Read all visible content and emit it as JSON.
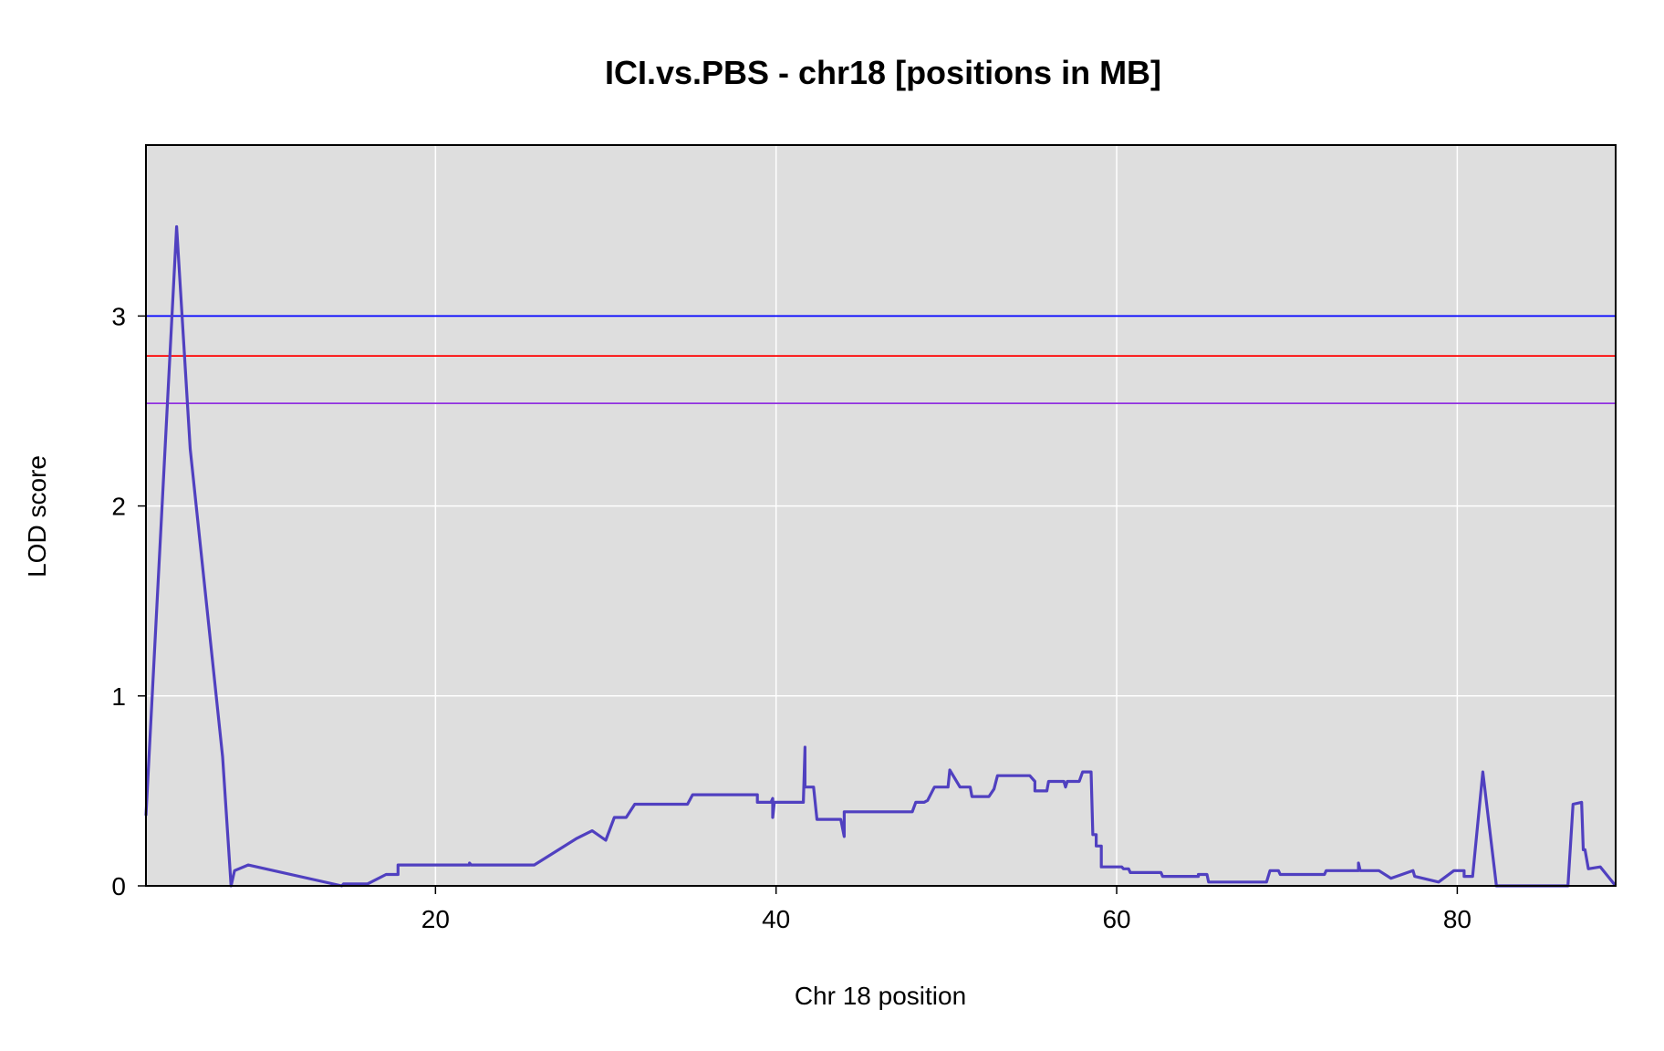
{
  "chart_data": {
    "type": "line",
    "title": "ICI.vs.PBS - chr18 [positions in MB]",
    "xlabel": "Chr 18 position",
    "ylabel": "LOD score",
    "xlim": [
      3,
      89.3
    ],
    "ylim": [
      0,
      3.9
    ],
    "x_ticks": [
      20,
      40,
      60,
      80
    ],
    "y_ticks": [
      0,
      1,
      2,
      3
    ],
    "grid": true,
    "legend": "none",
    "colors": {
      "panel_background": "#dedede",
      "grid": "#ffffff",
      "frame": "#000000",
      "series": "#5040c0"
    },
    "thresholds": [
      {
        "value": 3.0,
        "color": "#0000ff"
      },
      {
        "value": 2.79,
        "color": "#ff0000"
      },
      {
        "value": 2.54,
        "color": "#9030e0"
      }
    ],
    "series": [
      {
        "points": [
          [
            3.0,
            0.37
          ],
          [
            4.8,
            3.47
          ],
          [
            5.6,
            2.3
          ],
          [
            7.5,
            0.68
          ],
          [
            8.0,
            0.0
          ],
          [
            8.2,
            0.08
          ],
          [
            9.0,
            0.11
          ],
          [
            14.5,
            0.0
          ],
          [
            14.6,
            0.01
          ],
          [
            16.0,
            0.01
          ],
          [
            17.1,
            0.06
          ],
          [
            17.8,
            0.06
          ],
          [
            17.8,
            0.11
          ],
          [
            22.0,
            0.11
          ],
          [
            22.0,
            0.12
          ],
          [
            22.1,
            0.11
          ],
          [
            25.8,
            0.11
          ],
          [
            28.3,
            0.25
          ],
          [
            29.2,
            0.29
          ],
          [
            30.0,
            0.24
          ],
          [
            30.5,
            0.36
          ],
          [
            31.2,
            0.36
          ],
          [
            31.7,
            0.43
          ],
          [
            34.8,
            0.43
          ],
          [
            35.1,
            0.48
          ],
          [
            38.9,
            0.48
          ],
          [
            38.9,
            0.44
          ],
          [
            39.7,
            0.44
          ],
          [
            39.8,
            0.46
          ],
          [
            39.8,
            0.36
          ],
          [
            39.9,
            0.44
          ],
          [
            41.6,
            0.44
          ],
          [
            41.7,
            0.73
          ],
          [
            41.7,
            0.52
          ],
          [
            42.2,
            0.52
          ],
          [
            42.4,
            0.35
          ],
          [
            43.8,
            0.35
          ],
          [
            44.0,
            0.26
          ],
          [
            44.0,
            0.39
          ],
          [
            48.0,
            0.39
          ],
          [
            48.2,
            0.44
          ],
          [
            48.7,
            0.44
          ],
          [
            48.9,
            0.45
          ],
          [
            49.3,
            0.52
          ],
          [
            50.1,
            0.52
          ],
          [
            50.2,
            0.61
          ],
          [
            50.8,
            0.52
          ],
          [
            51.4,
            0.52
          ],
          [
            51.5,
            0.47
          ],
          [
            52.5,
            0.47
          ],
          [
            52.8,
            0.51
          ],
          [
            53.0,
            0.58
          ],
          [
            54.9,
            0.58
          ],
          [
            55.2,
            0.55
          ],
          [
            55.2,
            0.5
          ],
          [
            55.9,
            0.5
          ],
          [
            56.0,
            0.55
          ],
          [
            56.9,
            0.55
          ],
          [
            57.0,
            0.52
          ],
          [
            57.1,
            0.55
          ],
          [
            57.8,
            0.55
          ],
          [
            58.0,
            0.6
          ],
          [
            58.5,
            0.6
          ],
          [
            58.6,
            0.27
          ],
          [
            58.8,
            0.27
          ],
          [
            58.8,
            0.21
          ],
          [
            59.1,
            0.21
          ],
          [
            59.1,
            0.1
          ],
          [
            60.3,
            0.1
          ],
          [
            60.4,
            0.09
          ],
          [
            60.7,
            0.09
          ],
          [
            60.8,
            0.07
          ],
          [
            62.6,
            0.07
          ],
          [
            62.7,
            0.05
          ],
          [
            64.8,
            0.05
          ],
          [
            64.8,
            0.06
          ],
          [
            65.3,
            0.06
          ],
          [
            65.4,
            0.02
          ],
          [
            68.8,
            0.02
          ],
          [
            69.0,
            0.08
          ],
          [
            69.5,
            0.08
          ],
          [
            69.6,
            0.06
          ],
          [
            72.2,
            0.06
          ],
          [
            72.3,
            0.08
          ],
          [
            74.2,
            0.08
          ],
          [
            74.2,
            0.12
          ],
          [
            74.3,
            0.08
          ],
          [
            75.4,
            0.08
          ],
          [
            76.1,
            0.04
          ],
          [
            77.4,
            0.08
          ],
          [
            77.5,
            0.05
          ],
          [
            78.9,
            0.02
          ],
          [
            79.8,
            0.08
          ],
          [
            80.4,
            0.08
          ],
          [
            80.4,
            0.05
          ],
          [
            80.9,
            0.05
          ],
          [
            81.5,
            0.6
          ],
          [
            82.3,
            0.0
          ],
          [
            86.5,
            0.0
          ],
          [
            86.8,
            0.43
          ],
          [
            87.3,
            0.44
          ],
          [
            87.4,
            0.19
          ],
          [
            87.5,
            0.19
          ],
          [
            87.7,
            0.09
          ],
          [
            88.4,
            0.1
          ],
          [
            89.3,
            0.0
          ]
        ]
      }
    ]
  }
}
